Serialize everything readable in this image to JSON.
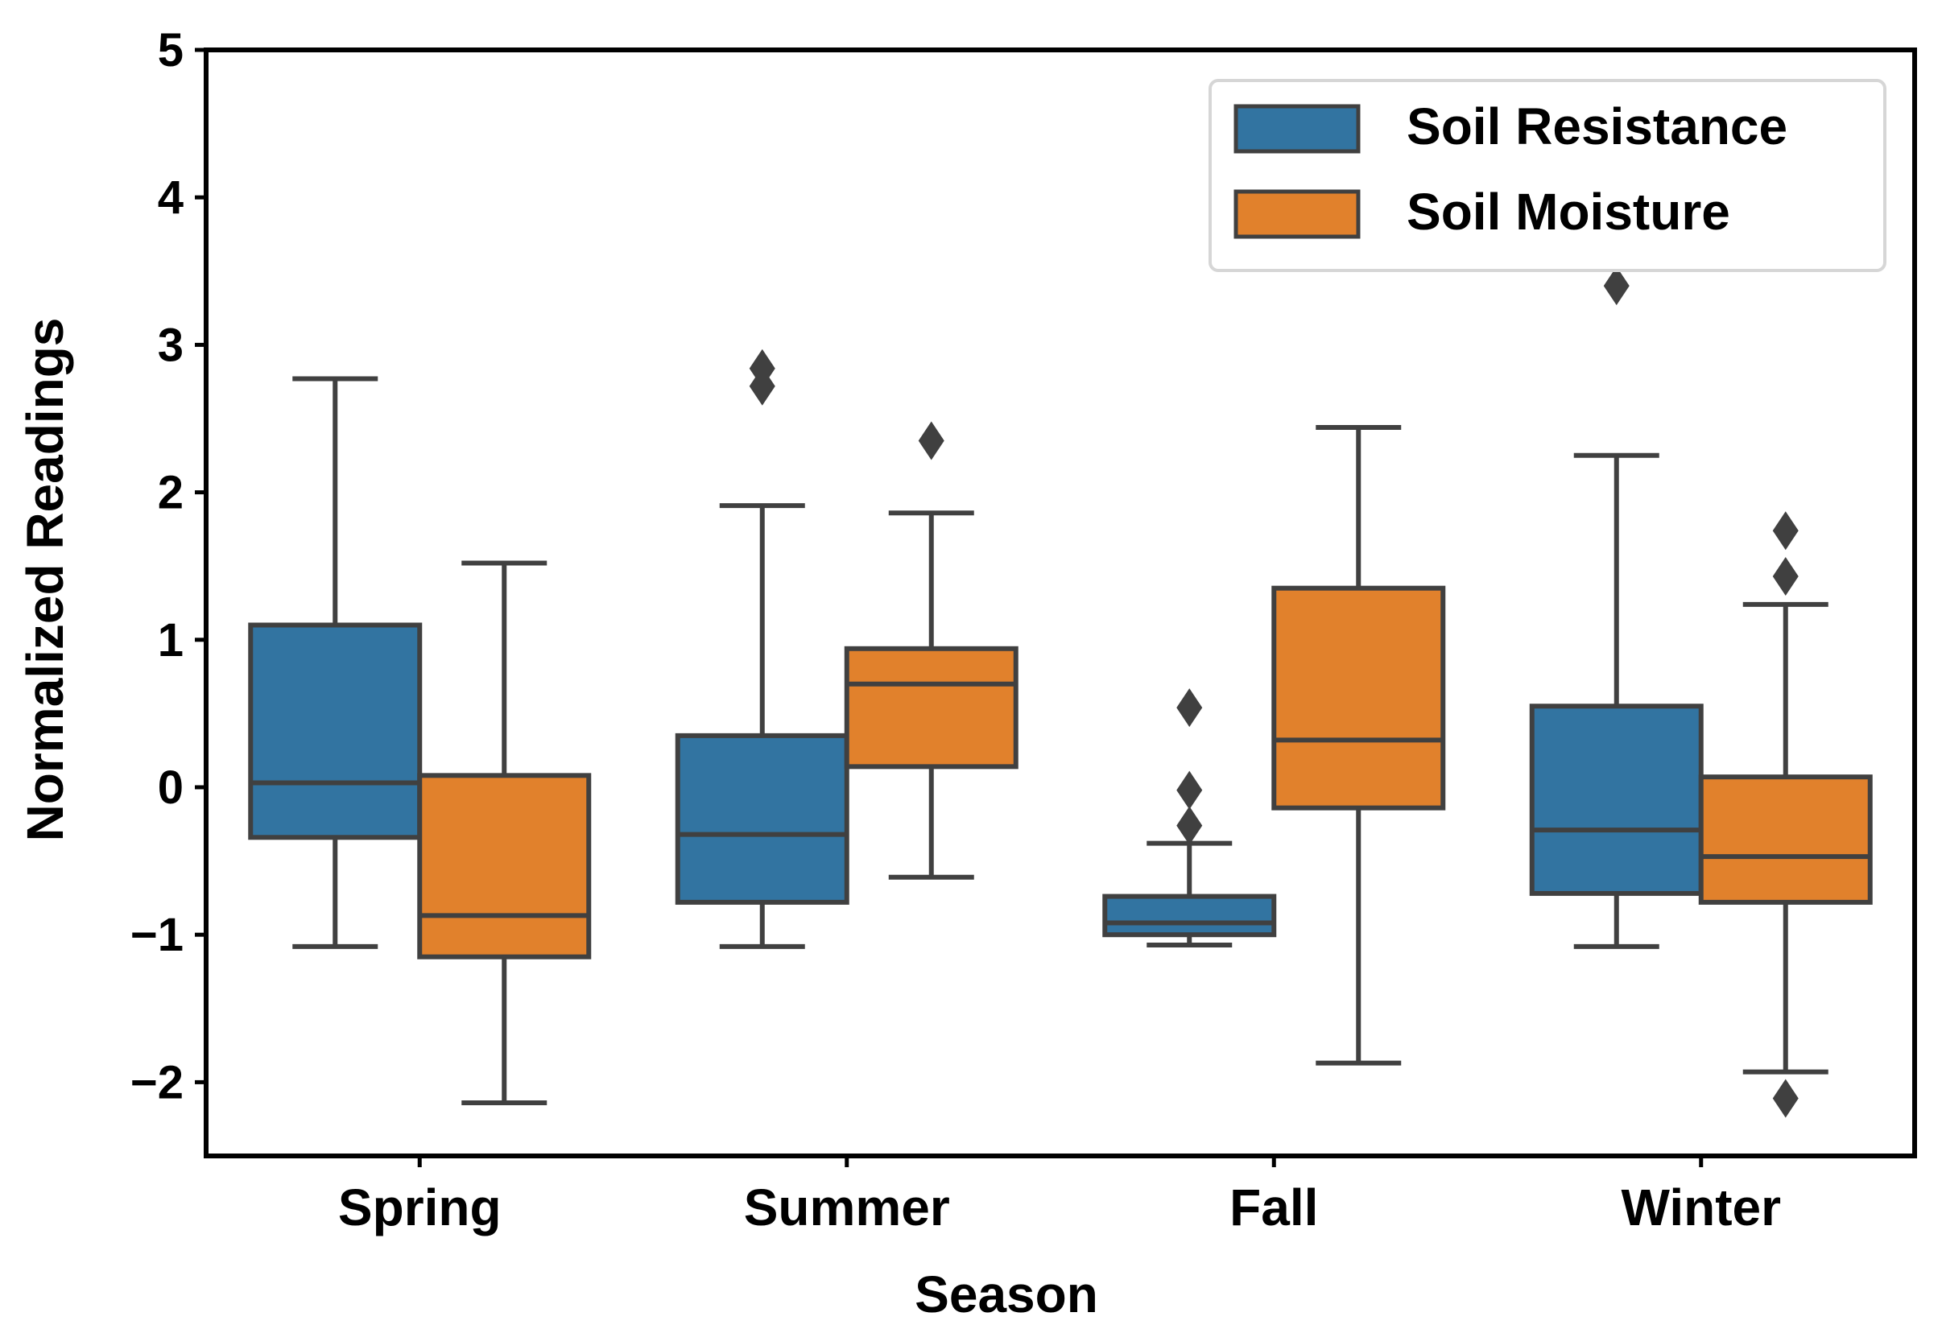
{
  "chart_data": {
    "type": "box",
    "xlabel": "Season",
    "ylabel": "Normalized Readings",
    "ylim": [
      -2.5,
      5
    ],
    "yticks": [
      5,
      4,
      3,
      2,
      1,
      0,
      -1,
      -2
    ],
    "ytick_labels": [
      "5",
      "4",
      "3",
      "2",
      "1",
      "0",
      "−1",
      "−2"
    ],
    "categories": [
      "Spring",
      "Summer",
      "Fall",
      "Winter"
    ],
    "legend": {
      "position": "top-right"
    },
    "series": [
      {
        "name": "Soil Resistance",
        "color": "#3274a1",
        "boxes": [
          {
            "q1": -0.34,
            "median": 0.03,
            "q3": 1.1,
            "whisker_low": -1.08,
            "whisker_high": 2.77,
            "outliers": []
          },
          {
            "q1": -0.78,
            "median": -0.32,
            "q3": 0.35,
            "whisker_low": -1.08,
            "whisker_high": 1.91,
            "outliers": [
              2.72,
              2.84
            ]
          },
          {
            "q1": -1.0,
            "median": -0.92,
            "q3": -0.74,
            "whisker_low": -1.07,
            "whisker_high": -0.38,
            "outliers": [
              -0.26,
              -0.02,
              0.54
            ]
          },
          {
            "q1": -0.72,
            "median": -0.29,
            "q3": 0.55,
            "whisker_low": -1.08,
            "whisker_high": 2.25,
            "outliers": [
              3.4
            ]
          }
        ]
      },
      {
        "name": "Soil Moisture",
        "color": "#e1812c",
        "boxes": [
          {
            "q1": -1.15,
            "median": -0.87,
            "q3": 0.08,
            "whisker_low": -2.14,
            "whisker_high": 1.52,
            "outliers": []
          },
          {
            "q1": 0.14,
            "median": 0.7,
            "q3": 0.94,
            "whisker_low": -0.61,
            "whisker_high": 1.86,
            "outliers": [
              2.35
            ]
          },
          {
            "q1": -0.14,
            "median": 0.32,
            "q3": 1.35,
            "whisker_low": -1.87,
            "whisker_high": 2.44,
            "outliers": []
          },
          {
            "q1": -0.78,
            "median": -0.47,
            "q3": 0.07,
            "whisker_low": -1.93,
            "whisker_high": 1.24,
            "outliers": [
              -2.11,
              1.43,
              1.74
            ]
          }
        ]
      }
    ]
  }
}
